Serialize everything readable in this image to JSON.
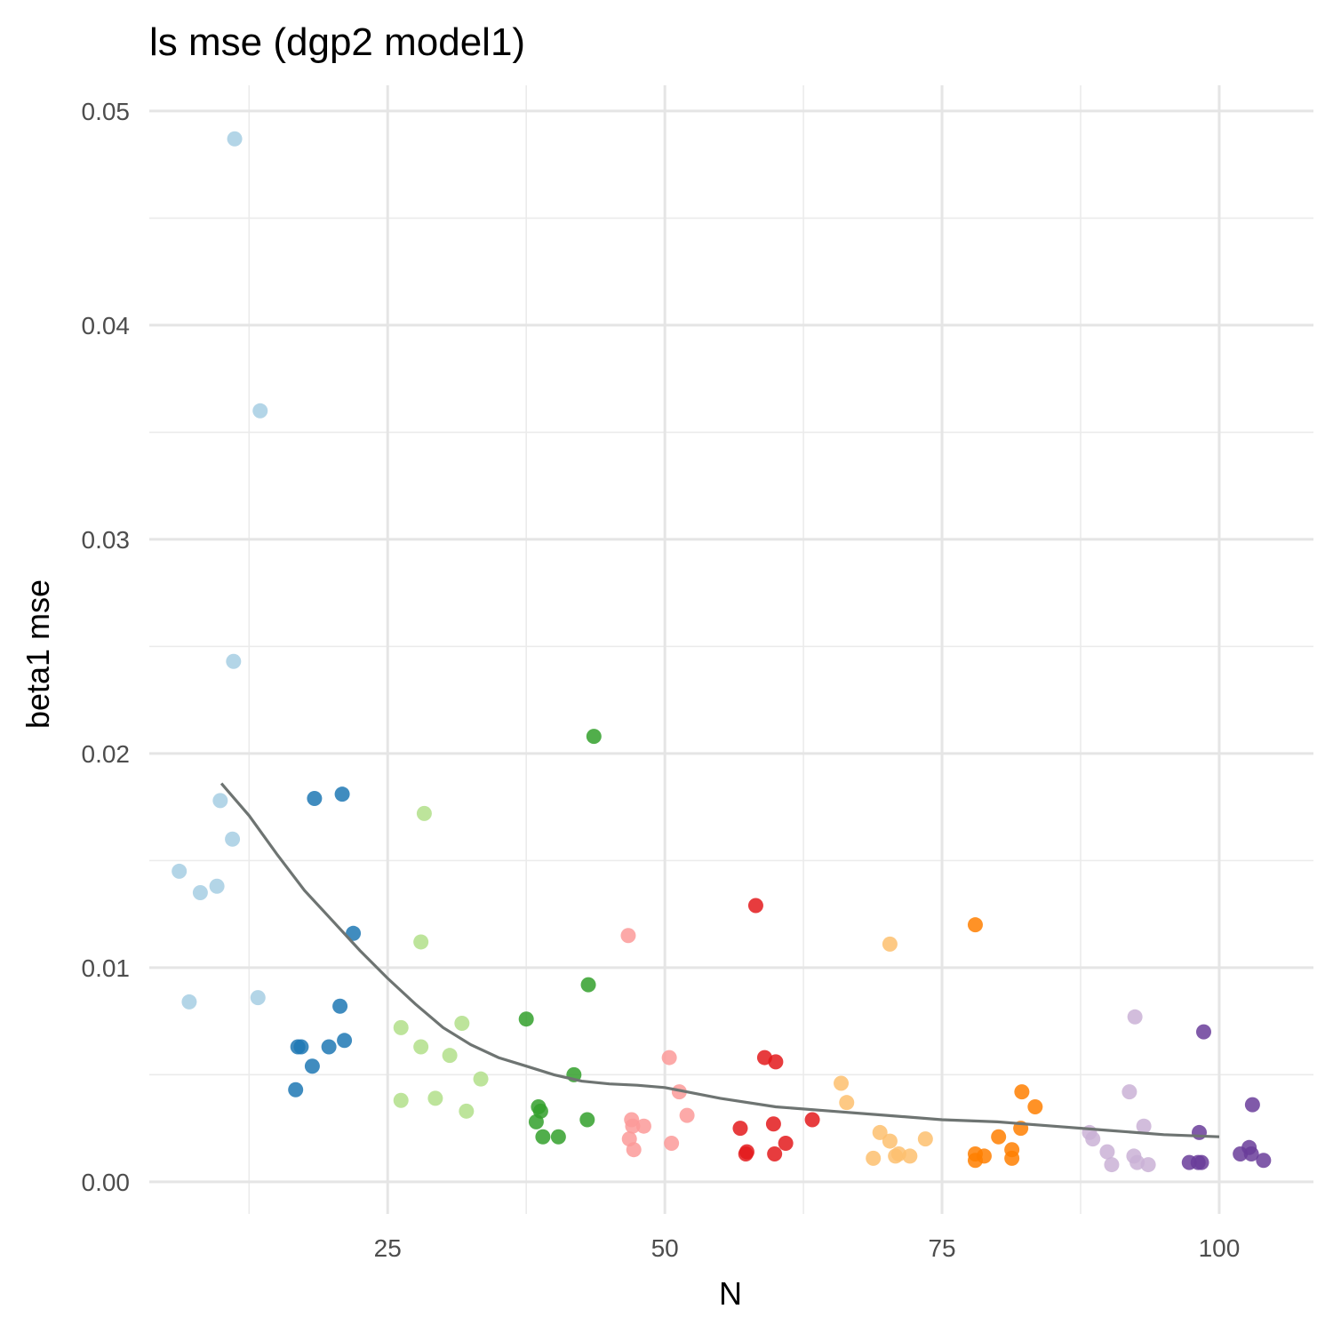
{
  "chart_data": {
    "type": "scatter",
    "title": "ls mse (dgp2 model1)",
    "xlabel": "N",
    "ylabel": "beta1 mse",
    "xlim": [
      3.5,
      108.5
    ],
    "ylim": [
      -0.0015,
      0.0512
    ],
    "x_ticks": [
      25,
      50,
      75,
      100
    ],
    "x_tick_labels": [
      "25",
      "50",
      "75",
      "100"
    ],
    "x_minor_ticks": [
      12.5,
      37.5,
      62.5,
      87.5
    ],
    "y_ticks": [
      0,
      0.01,
      0.02,
      0.03,
      0.04,
      0.05
    ],
    "y_tick_labels": [
      "0.00",
      "0.01",
      "0.02",
      "0.03",
      "0.04",
      "0.05"
    ],
    "y_minor_ticks": [
      0.005,
      0.015,
      0.025,
      0.035,
      0.045
    ],
    "grid": true,
    "legend": "none",
    "groups": [
      {
        "color": "#a6cee3",
        "x": [
          11.2,
          13.5,
          11.1,
          9.9,
          11.0,
          6.2,
          8.1,
          9.6,
          7.1,
          13.3
        ],
        "y": [
          0.0487,
          0.036,
          0.0243,
          0.0178,
          0.016,
          0.0145,
          0.0135,
          0.0138,
          0.0084,
          0.0086
        ]
      },
      {
        "color": "#1f78b4",
        "x": [
          18.4,
          20.9,
          21.9,
          20.7,
          16.9,
          17.2,
          19.7,
          21.1,
          18.2,
          16.7
        ],
        "y": [
          0.0179,
          0.0181,
          0.0116,
          0.0082,
          0.0063,
          0.0063,
          0.0063,
          0.0066,
          0.0054,
          0.0043
        ]
      },
      {
        "color": "#b2df8a",
        "x": [
          28.3,
          28.0,
          26.2,
          28.0,
          31.7,
          30.6,
          33.4,
          26.2,
          29.3,
          32.1
        ],
        "y": [
          0.0172,
          0.0112,
          0.0072,
          0.0063,
          0.0074,
          0.0059,
          0.0048,
          0.0038,
          0.0039,
          0.0033
        ]
      },
      {
        "color": "#33a02c",
        "x": [
          43.6,
          43.1,
          37.5,
          41.8,
          38.6,
          38.8,
          38.4,
          43.0,
          39.0,
          40.4
        ],
        "y": [
          0.0208,
          0.0092,
          0.0076,
          0.005,
          0.0035,
          0.0033,
          0.0028,
          0.0029,
          0.0021,
          0.0021
        ]
      },
      {
        "color": "#fb9a99",
        "x": [
          46.7,
          50.4,
          51.3,
          52.0,
          47.0,
          47.1,
          48.1,
          46.8,
          50.6,
          47.2
        ],
        "y": [
          0.0115,
          0.0058,
          0.0042,
          0.0031,
          0.0029,
          0.0026,
          0.0026,
          0.002,
          0.0018,
          0.0015
        ]
      },
      {
        "color": "#e31a1c",
        "x": [
          58.2,
          59.0,
          60.0,
          63.3,
          59.8,
          56.8,
          57.4,
          57.3,
          60.9,
          59.9
        ],
        "y": [
          0.0129,
          0.0058,
          0.0056,
          0.0029,
          0.0027,
          0.0025,
          0.0014,
          0.0013,
          0.0018,
          0.0013
        ]
      },
      {
        "color": "#fdbf6f",
        "x": [
          70.3,
          65.9,
          66.4,
          69.4,
          70.3,
          73.5,
          70.8,
          71.1,
          72.1,
          68.8
        ],
        "y": [
          0.0111,
          0.0046,
          0.0037,
          0.0023,
          0.0019,
          0.002,
          0.0012,
          0.0013,
          0.0012,
          0.0011
        ]
      },
      {
        "color": "#ff7f00",
        "x": [
          78.0,
          82.2,
          83.4,
          82.1,
          80.1,
          81.3,
          78.0,
          78.8,
          81.3,
          78.0
        ],
        "y": [
          0.012,
          0.0042,
          0.0035,
          0.0025,
          0.0021,
          0.0015,
          0.0013,
          0.0012,
          0.0011,
          0.001
        ]
      },
      {
        "color": "#cab2d6",
        "x": [
          92.4,
          91.9,
          93.2,
          88.3,
          88.6,
          89.9,
          92.3,
          90.3,
          92.6,
          93.6
        ],
        "y": [
          0.0077,
          0.0042,
          0.0026,
          0.0023,
          0.002,
          0.0014,
          0.0012,
          0.0008,
          0.0009,
          0.0008
        ]
      },
      {
        "color": "#6a3d9a",
        "x": [
          98.6,
          103.0,
          98.2,
          102.7,
          101.9,
          102.9,
          104.0,
          97.3,
          98.1,
          98.4
        ],
        "y": [
          0.007,
          0.0036,
          0.0023,
          0.0016,
          0.0013,
          0.0013,
          0.001,
          0.0009,
          0.0009,
          0.0009
        ]
      }
    ],
    "trend_line": {
      "color": "#6e7472",
      "x": [
        10,
        12.5,
        15,
        17.5,
        20,
        22.5,
        25,
        27.5,
        30,
        32.5,
        35,
        37.5,
        40,
        42.5,
        45,
        47.5,
        50,
        55,
        60,
        65,
        70,
        75,
        80,
        85,
        90,
        95,
        100
      ],
      "y": [
        0.0186,
        0.0171,
        0.0153,
        0.0136,
        0.0122,
        0.0108,
        0.0095,
        0.0083,
        0.0072,
        0.0064,
        0.0058,
        0.0054,
        0.005,
        0.0047,
        0.00457,
        0.00451,
        0.0044,
        0.0039,
        0.0035,
        0.0033,
        0.0031,
        0.0029,
        0.0028,
        0.0026,
        0.0024,
        0.0022,
        0.0021
      ]
    }
  }
}
